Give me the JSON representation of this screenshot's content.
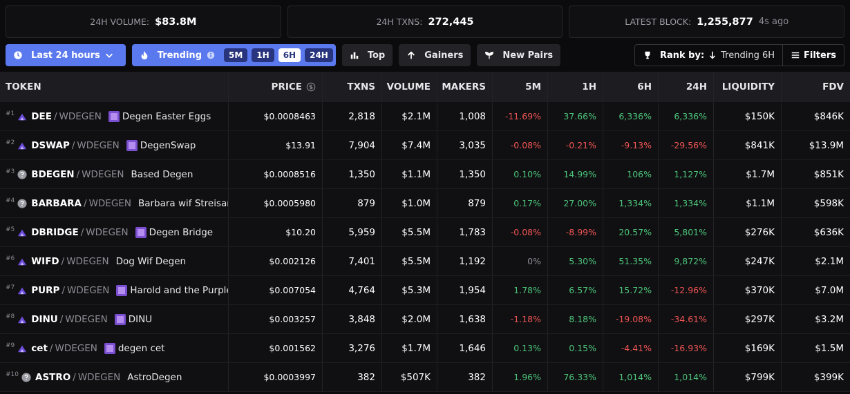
{
  "stats": [
    {
      "label": "24H VOLUME:",
      "value": "$83.8M"
    },
    {
      "label": "24H TXNS:",
      "value": "272,445"
    },
    {
      "label": "LATEST BLOCK:",
      "value": "1,255,877",
      "note": "4s ago"
    }
  ],
  "toolbar": {
    "time": "Last 24 hours",
    "trending": "Trending",
    "periods": [
      "5M",
      "1H",
      "6H",
      "24H"
    ],
    "active_period": "6H",
    "top": "Top",
    "gainers": "Gainers",
    "new_pairs": "New Pairs",
    "rank_by": "Rank by:",
    "rank_value": "Trending 6H",
    "filters": "Filters"
  },
  "table": {
    "columns": [
      "TOKEN",
      "PRICE",
      "TXNS",
      "VOLUME",
      "MAKERS",
      "5M",
      "1H",
      "6H",
      "24H",
      "LIQUIDITY",
      "FDV"
    ],
    "separator": "/",
    "rows": [
      {
        "rank": "#1",
        "symbol": "DEE",
        "quote": "WDEGEN",
        "name": "Degen Easter Eggs",
        "token_icon": "logo",
        "name_icon": true,
        "cells": [
          "$0.0008463",
          "2,818",
          "$2.1M",
          "1,008",
          "-11.69%",
          "37.66%",
          "6,336%",
          "6,336%",
          "$150K",
          "$846K"
        ]
      },
      {
        "rank": "#2",
        "symbol": "DSWAP",
        "quote": "WDEGEN",
        "name": "DegenSwap",
        "token_icon": "logo",
        "name_icon": true,
        "cells": [
          "$13.91",
          "7,904",
          "$7.4M",
          "3,035",
          "-0.08%",
          "-0.21%",
          "-9.13%",
          "-29.56%",
          "$841K",
          "$13.9M"
        ]
      },
      {
        "rank": "#3",
        "symbol": "BDEGEN",
        "quote": "WDEGEN",
        "name": "Based Degen",
        "token_icon": "question",
        "name_icon": false,
        "cells": [
          "$0.0008516",
          "1,350",
          "$1.1M",
          "1,350",
          "0.10%",
          "14.99%",
          "106%",
          "1,127%",
          "$1.7M",
          "$851K"
        ]
      },
      {
        "rank": "#4",
        "symbol": "BARBARA",
        "quote": "WDEGEN",
        "name": "Barbara wif Streisanc",
        "token_icon": "question",
        "name_icon": false,
        "cells": [
          "$0.0005980",
          "879",
          "$1.0M",
          "879",
          "0.17%",
          "27.00%",
          "1,334%",
          "1,334%",
          "$1.1M",
          "$598K"
        ]
      },
      {
        "rank": "#5",
        "symbol": "DBRIDGE",
        "quote": "WDEGEN",
        "name": "Degen Bridge",
        "token_icon": "logo",
        "name_icon": true,
        "cells": [
          "$10.20",
          "5,959",
          "$5.5M",
          "1,783",
          "-0.08%",
          "-8.99%",
          "20.57%",
          "5,801%",
          "$276K",
          "$636K"
        ]
      },
      {
        "rank": "#6",
        "symbol": "WIFD",
        "quote": "WDEGEN",
        "name": "Dog Wif Degen",
        "token_icon": "logo",
        "name_icon": false,
        "cells": [
          "$0.002126",
          "7,401",
          "$5.5M",
          "1,192",
          "0%",
          "5.30%",
          "51.35%",
          "9,872%",
          "$247K",
          "$2.1M"
        ]
      },
      {
        "rank": "#7",
        "symbol": "PURP",
        "quote": "WDEGEN",
        "name": "Harold and the Purple C",
        "token_icon": "logo",
        "name_icon": true,
        "cells": [
          "$0.007054",
          "4,764",
          "$5.3M",
          "1,954",
          "1.78%",
          "6.57%",
          "15.72%",
          "-12.96%",
          "$370K",
          "$7.0M"
        ]
      },
      {
        "rank": "#8",
        "symbol": "DINU",
        "quote": "WDEGEN",
        "name": "DINU",
        "token_icon": "logo",
        "name_icon": true,
        "cells": [
          "$0.003257",
          "3,848",
          "$2.0M",
          "1,638",
          "-1.18%",
          "8.18%",
          "-19.08%",
          "-34.61%",
          "$297K",
          "$3.2M"
        ]
      },
      {
        "rank": "#9",
        "symbol": "cet",
        "quote": "WDEGEN",
        "name": "degen cet",
        "token_icon": "logo",
        "name_icon": true,
        "cells": [
          "$0.001562",
          "3,276",
          "$1.7M",
          "1,646",
          "0.13%",
          "0.15%",
          "-4.41%",
          "-16.93%",
          "$169K",
          "$1.5M"
        ]
      },
      {
        "rank": "#10",
        "symbol": "ASTRO",
        "quote": "WDEGEN",
        "name": "AstroDegen",
        "token_icon": "question",
        "name_icon": false,
        "cells": [
          "$0.0003997",
          "382",
          "$507K",
          "382",
          "1.96%",
          "76.33%",
          "1,014%",
          "1,014%",
          "$799K",
          "$399K"
        ]
      }
    ]
  }
}
